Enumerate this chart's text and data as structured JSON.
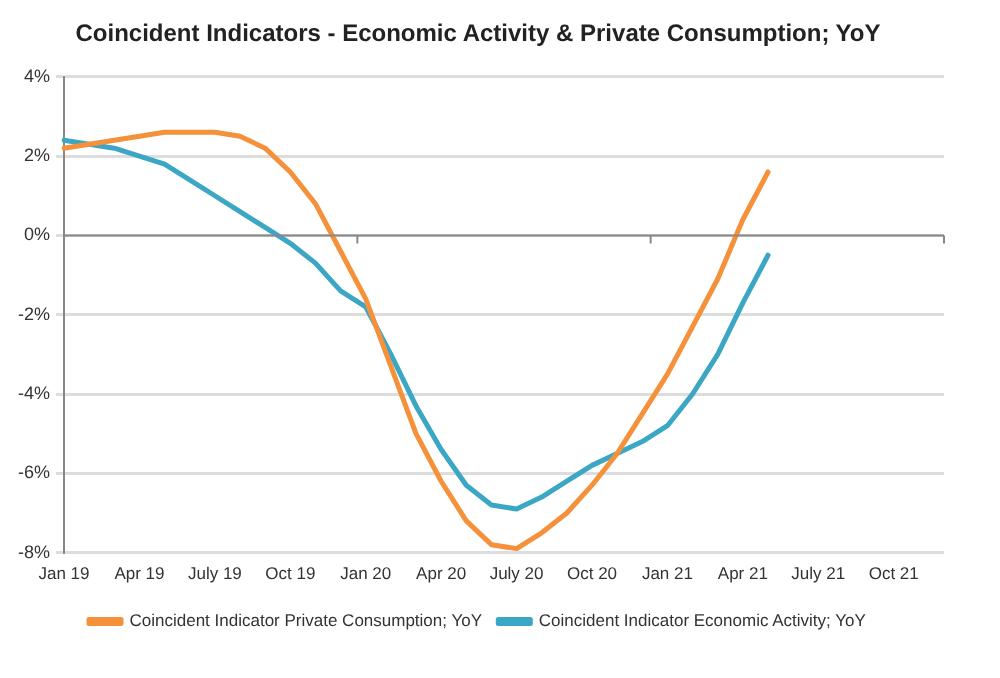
{
  "chart_data": {
    "type": "line",
    "title": "Coincident Indicators - Economic Activity & Private Consumption; YoY",
    "categories": [
      "Jan 19",
      null,
      null,
      "Apr 19",
      null,
      null,
      "July 19",
      null,
      null,
      "Oct 19",
      null,
      null,
      "Jan 20",
      null,
      null,
      "Apr 20",
      null,
      null,
      "July 20",
      null,
      null,
      "Oct 20",
      null,
      null,
      "Jan 21",
      null,
      null,
      "Apr 21",
      null,
      null,
      "July 21",
      null,
      null,
      "Oct 21",
      null,
      null
    ],
    "series": [
      {
        "name": "Coincident Indicator Private Consumption; YoY",
        "color": "#f5913a",
        "values": [
          2.2,
          2.3,
          2.4,
          2.5,
          2.6,
          2.6,
          2.6,
          2.5,
          2.2,
          1.6,
          0.8,
          -0.4,
          -1.6,
          -3.3,
          -5.0,
          -6.2,
          -7.2,
          -7.8,
          -7.9,
          -7.5,
          -7.0,
          -6.3,
          -5.5,
          -4.5,
          -3.5,
          -2.3,
          -1.1,
          0.4,
          1.6,
          null,
          null,
          null,
          null,
          null,
          null,
          null
        ]
      },
      {
        "name": "Coincident Indicator Economic Activity; YoY",
        "color": "#3ba7c4",
        "values": [
          2.4,
          2.3,
          2.2,
          2.0,
          1.8,
          1.4,
          1.0,
          0.6,
          0.2,
          -0.2,
          -0.7,
          -1.4,
          -1.8,
          -3.0,
          -4.3,
          -5.4,
          -6.3,
          -6.8,
          -6.9,
          -6.6,
          -6.2,
          -5.8,
          -5.5,
          -5.2,
          -4.8,
          -4.0,
          -3.0,
          -1.7,
          -0.5,
          null,
          null,
          null,
          null,
          null,
          null,
          null
        ]
      }
    ],
    "ylim": [
      -8,
      4
    ],
    "yticks": [
      {
        "value": -8,
        "label": "-8%"
      },
      {
        "value": -6,
        "label": "-6%"
      },
      {
        "value": -4,
        "label": "-4%"
      },
      {
        "value": -2,
        "label": "-2%"
      },
      {
        "value": 0,
        "label": "0%"
      },
      {
        "value": 2,
        "label": "2%"
      },
      {
        "value": 4,
        "label": "4%"
      }
    ],
    "grid": "y",
    "legend": "bottom",
    "marker": "none",
    "line_style": "solid"
  }
}
